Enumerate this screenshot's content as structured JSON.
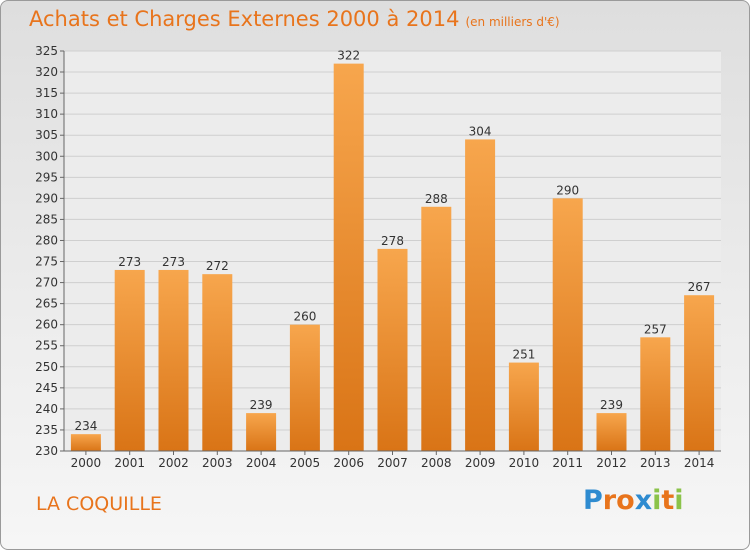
{
  "title": "Achats et Charges Externes 2000 à 2014",
  "subtitle": "(en milliers d'€)",
  "commune": "LA COQUILLE",
  "logo": {
    "text": "Proxiti",
    "letter_colors": [
      "#2e8bd0",
      "#e8741c",
      "#e8741c",
      "#2e8bd0",
      "#8bc34a",
      "#e8741c",
      "#8bc34a"
    ]
  },
  "colors": {
    "bar_light": "#f7a64d",
    "bar_dark": "#d97416",
    "title": "#e8741c"
  },
  "chart_data": {
    "type": "bar",
    "categories": [
      "2000",
      "2001",
      "2002",
      "2003",
      "2004",
      "2005",
      "2006",
      "2007",
      "2008",
      "2009",
      "2010",
      "2011",
      "2012",
      "2013",
      "2014"
    ],
    "values": [
      234,
      273,
      273,
      272,
      239,
      260,
      322,
      278,
      288,
      304,
      251,
      290,
      239,
      257,
      267
    ],
    "ylim": [
      230,
      325
    ],
    "yticks": [
      230,
      235,
      240,
      245,
      250,
      255,
      260,
      265,
      270,
      275,
      280,
      285,
      290,
      295,
      300,
      305,
      310,
      315,
      320,
      325
    ],
    "grid": true
  }
}
